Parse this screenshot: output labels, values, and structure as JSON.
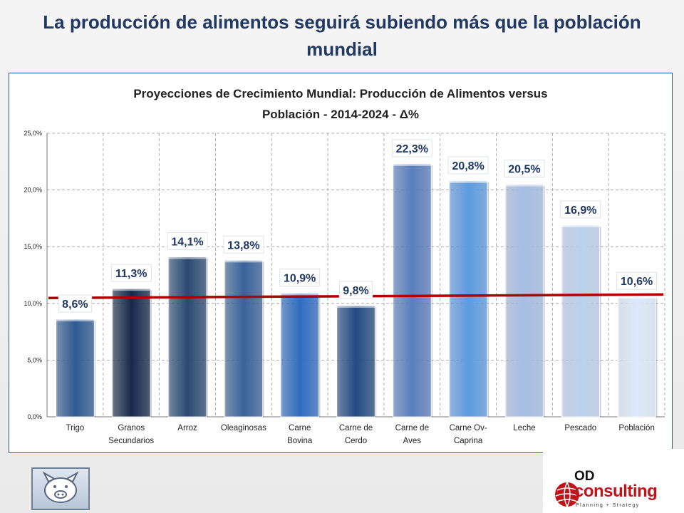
{
  "page": {
    "title": "La producción de alimentos seguirá subiendo más que la población mundial"
  },
  "chart_data": {
    "type": "bar",
    "title": "Proyecciones de Crecimiento Mundial: Producción de Alimentos  versus Población - 2014-2024  - Δ%",
    "title_lines": [
      "Proyecciones de Crecimiento Mundial: Producción de Alimentos  versus",
      "Población - 2014-2024  - Δ%"
    ],
    "categories": [
      "Trigo",
      "Granos Secundarios",
      "Arroz",
      "Oleaginosas",
      "Carne Bovina",
      "Carne de Cerdo",
      "Carne de Aves",
      "Carne Ov-Caprina",
      "Leche",
      "Pescado",
      "Población"
    ],
    "category_lines": [
      [
        "Trigo"
      ],
      [
        "Granos",
        "Secundarios"
      ],
      [
        "Arroz"
      ],
      [
        "Oleaginosas"
      ],
      [
        "Carne",
        "Bovina"
      ],
      [
        "Carne de",
        "Cerdo"
      ],
      [
        "Carne de",
        "Aves"
      ],
      [
        "Carne Ov-",
        "Caprina"
      ],
      [
        "Leche"
      ],
      [
        "Pescado"
      ],
      [
        "Población"
      ]
    ],
    "values": [
      8.6,
      11.3,
      14.1,
      13.8,
      10.9,
      9.8,
      22.3,
      20.8,
      20.5,
      16.9,
      10.6
    ],
    "value_labels": [
      "8,6%",
      "11,3%",
      "14,1%",
      "13,8%",
      "10,9%",
      "9,8%",
      "22,3%",
      "20,8%",
      "20,5%",
      "16,9%",
      "10,6%"
    ],
    "bar_colors": [
      "#2f5a93",
      "#16294a",
      "#2a4a73",
      "#3a6299",
      "#2e6cc0",
      "#234a82",
      "#5a7ebf",
      "#5d9be0",
      "#a7bde3",
      "#bcd0ee",
      "#dce9fb"
    ],
    "ylim": [
      0,
      25
    ],
    "yticks": [
      0,
      5,
      10,
      15,
      20,
      25
    ],
    "ytick_labels": [
      "0,0%",
      "5,0%",
      "10,0%",
      "15,0%",
      "20,0%",
      "25,0%"
    ],
    "reference_line": {
      "value": 10.6,
      "color": "#b00000"
    },
    "grid": true
  }
}
